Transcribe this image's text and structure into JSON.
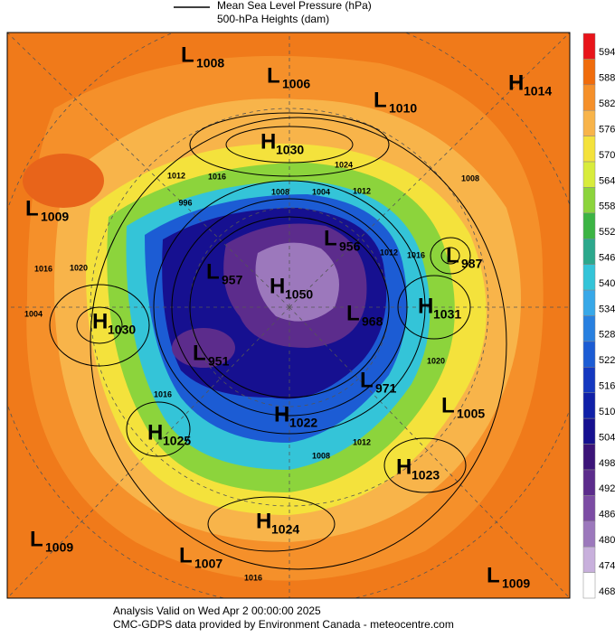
{
  "header": {
    "line_label": "Mean Sea Level Pressure (hPa)",
    "shade_label": "500-hPa Heights (dam)"
  },
  "centers": [
    {
      "type": "L",
      "value": "1008"
    },
    {
      "type": "L",
      "value": "1006"
    },
    {
      "type": "L",
      "value": "1010"
    },
    {
      "type": "H",
      "value": "1014"
    },
    {
      "type": "H",
      "value": "1030"
    },
    {
      "type": "L",
      "value": "1009"
    },
    {
      "type": "L",
      "value": "987"
    },
    {
      "type": "L",
      "value": "956"
    },
    {
      "type": "L",
      "value": "957"
    },
    {
      "type": "H",
      "value": "1050"
    },
    {
      "type": "L",
      "value": "968"
    },
    {
      "type": "H",
      "value": "1031"
    },
    {
      "type": "H",
      "value": "1030"
    },
    {
      "type": "L",
      "value": "951"
    },
    {
      "type": "L",
      "value": "971"
    },
    {
      "type": "L",
      "value": "1005"
    },
    {
      "type": "H",
      "value": "1022"
    },
    {
      "type": "H",
      "value": "1025"
    },
    {
      "type": "H",
      "value": "1023"
    },
    {
      "type": "H",
      "value": "1024"
    },
    {
      "type": "L",
      "value": "1009"
    },
    {
      "type": "L",
      "value": "1007"
    },
    {
      "type": "L",
      "value": "1009"
    }
  ],
  "contour_labels": [
    "1012",
    "1016",
    "1024",
    "1012",
    "1008",
    "1004",
    "996",
    "1016",
    "1020",
    "1016",
    "1012",
    "1008",
    "1020",
    "1016",
    "1012",
    "1008",
    "1016",
    "1004"
  ],
  "colorbar": {
    "ticks": [
      594,
      588,
      582,
      576,
      570,
      564,
      558,
      552,
      546,
      540,
      534,
      528,
      522,
      516,
      510,
      504,
      498,
      492,
      486,
      480,
      474,
      468
    ],
    "colors": [
      "#e8141a",
      "#f06c0c",
      "#f5902a",
      "#f8b44a",
      "#f4e23c",
      "#d8ec3c",
      "#8cd43c",
      "#3cb444",
      "#2ca88c",
      "#34c4d8",
      "#38a8e8",
      "#2880e0",
      "#1c5cd4",
      "#1438c0",
      "#1020a8",
      "#161090",
      "#3c1478",
      "#5c2c8c",
      "#7c4ca4",
      "#9c78bc",
      "#c8b0dc",
      "#ffffff"
    ]
  },
  "footer": {
    "line1": "Analysis Valid on Wed Apr  2 00:00:00 2025",
    "line2": "CMC-GDPS data provided by Environment Canada - meteocentre.com"
  }
}
